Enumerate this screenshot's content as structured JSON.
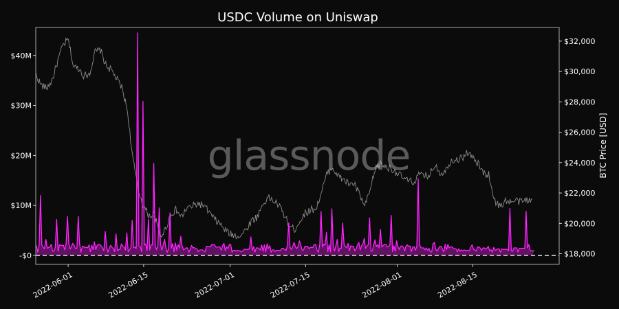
{
  "chart_data": {
    "type": "line",
    "title": "USDC Volume on Uniswap",
    "watermark": "glassnode",
    "x_ticks": [
      "2022-06-01",
      "2022-06-15",
      "2022-07-01",
      "2022-07-15",
      "2022-08-01",
      "2022-08-15"
    ],
    "x_range": [
      "2022-05-26",
      "2022-08-31"
    ],
    "left_axis": {
      "label": "",
      "ticks": [
        {
          "value": 0,
          "label": "-$0"
        },
        {
          "value": 10000000,
          "label": "$10M"
        },
        {
          "value": 20000000,
          "label": "$20M"
        },
        {
          "value": 30000000,
          "label": "$30M"
        },
        {
          "value": 40000000,
          "label": "$40M"
        }
      ],
      "range": [
        -1800000,
        45600000
      ]
    },
    "right_axis": {
      "label": "BTC Price [USD]",
      "ticks": [
        {
          "value": 18000,
          "label": "$18,000"
        },
        {
          "value": 20000,
          "label": "$20,000"
        },
        {
          "value": 22000,
          "label": "$22,000"
        },
        {
          "value": 24000,
          "label": "$24,000"
        },
        {
          "value": 26000,
          "label": "$26,000"
        },
        {
          "value": 28000,
          "label": "$28,000"
        },
        {
          "value": 30000,
          "label": "$30,000"
        },
        {
          "value": 32000,
          "label": "$32,000"
        }
      ],
      "range": [
        17300,
        32900
      ]
    },
    "baseline": {
      "value": 0,
      "style": "dashed"
    },
    "grid": false,
    "legend": "none",
    "series": [
      {
        "axis": "right",
        "color": "#8c8c8c",
        "points": [
          [
            "2022-05-26",
            29800
          ],
          [
            "2022-05-27",
            29100
          ],
          [
            "2022-05-28",
            28900
          ],
          [
            "2022-05-29",
            29400
          ],
          [
            "2022-05-30",
            30600
          ],
          [
            "2022-05-31",
            31700
          ],
          [
            "2022-06-01",
            32100
          ],
          [
            "2022-06-02",
            30300
          ],
          [
            "2022-06-03",
            30200
          ],
          [
            "2022-06-04",
            29700
          ],
          [
            "2022-06-05",
            29900
          ],
          [
            "2022-06-06",
            31300
          ],
          [
            "2022-06-07",
            31400
          ],
          [
            "2022-06-08",
            30400
          ],
          [
            "2022-06-09",
            30100
          ],
          [
            "2022-06-10",
            29500
          ],
          [
            "2022-06-11",
            28900
          ],
          [
            "2022-06-12",
            27400
          ],
          [
            "2022-06-13",
            24200
          ],
          [
            "2022-06-14",
            22200
          ],
          [
            "2022-06-15",
            21100
          ],
          [
            "2022-06-16",
            20500
          ],
          [
            "2022-06-17",
            20600
          ],
          [
            "2022-06-18",
            19100
          ],
          [
            "2022-06-19",
            19600
          ],
          [
            "2022-06-20",
            20600
          ],
          [
            "2022-06-21",
            20900
          ],
          [
            "2022-06-22",
            20400
          ],
          [
            "2022-06-23",
            21000
          ],
          [
            "2022-06-24",
            21100
          ],
          [
            "2022-06-25",
            21300
          ],
          [
            "2022-06-26",
            21200
          ],
          [
            "2022-06-27",
            20800
          ],
          [
            "2022-06-28",
            20300
          ],
          [
            "2022-06-29",
            20000
          ],
          [
            "2022-06-30",
            19600
          ],
          [
            "2022-07-01",
            19300
          ],
          [
            "2022-07-02",
            19200
          ],
          [
            "2022-07-03",
            19200
          ],
          [
            "2022-07-04",
            19600
          ],
          [
            "2022-07-05",
            20200
          ],
          [
            "2022-07-06",
            20400
          ],
          [
            "2022-07-07",
            21200
          ],
          [
            "2022-07-08",
            21700
          ],
          [
            "2022-07-09",
            21500
          ],
          [
            "2022-07-10",
            21200
          ],
          [
            "2022-07-11",
            20600
          ],
          [
            "2022-07-12",
            19800
          ],
          [
            "2022-07-13",
            19600
          ],
          [
            "2022-07-14",
            20200
          ],
          [
            "2022-07-15",
            20700
          ],
          [
            "2022-07-16",
            20900
          ],
          [
            "2022-07-17",
            21000
          ],
          [
            "2022-07-18",
            22100
          ],
          [
            "2022-07-19",
            23300
          ],
          [
            "2022-07-20",
            23700
          ],
          [
            "2022-07-21",
            23100
          ],
          [
            "2022-07-22",
            22900
          ],
          [
            "2022-07-23",
            22600
          ],
          [
            "2022-07-24",
            22600
          ],
          [
            "2022-07-25",
            21900
          ],
          [
            "2022-07-26",
            21100
          ],
          [
            "2022-07-27",
            22200
          ],
          [
            "2022-07-28",
            23700
          ],
          [
            "2022-07-29",
            23900
          ],
          [
            "2022-07-30",
            23700
          ],
          [
            "2022-07-31",
            23600
          ],
          [
            "2022-08-01",
            23300
          ],
          [
            "2022-08-02",
            23000
          ],
          [
            "2022-08-03",
            22800
          ],
          [
            "2022-08-04",
            22700
          ],
          [
            "2022-08-05",
            23200
          ],
          [
            "2022-08-06",
            23100
          ],
          [
            "2022-08-07",
            23200
          ],
          [
            "2022-08-08",
            23900
          ],
          [
            "2022-08-09",
            23300
          ],
          [
            "2022-08-10",
            23500
          ],
          [
            "2022-08-11",
            24200
          ],
          [
            "2022-08-12",
            24200
          ],
          [
            "2022-08-13",
            24300
          ],
          [
            "2022-08-14",
            24700
          ],
          [
            "2022-08-15",
            24300
          ],
          [
            "2022-08-16",
            23900
          ],
          [
            "2022-08-17",
            23300
          ],
          [
            "2022-08-18",
            23200
          ],
          [
            "2022-08-19",
            21500
          ],
          [
            "2022-08-20",
            21100
          ],
          [
            "2022-08-21",
            21500
          ],
          [
            "2022-08-22",
            21400
          ],
          [
            "2022-08-23",
            21500
          ],
          [
            "2022-08-24",
            21400
          ],
          [
            "2022-08-25",
            21600
          ],
          [
            "2022-08-26",
            21400
          ]
        ]
      },
      {
        "axis": "left",
        "color": "#ff22ff",
        "points": [
          [
            "2022-05-26",
            2400000
          ],
          [
            "2022-05-27",
            12000000
          ],
          [
            "2022-05-28",
            3200000
          ],
          [
            "2022-05-29",
            2200000
          ],
          [
            "2022-05-30",
            7200000
          ],
          [
            "2022-05-31",
            2000000
          ],
          [
            "2022-06-01",
            7800000
          ],
          [
            "2022-06-02",
            2400000
          ],
          [
            "2022-06-03",
            7800000
          ],
          [
            "2022-06-04",
            1800000
          ],
          [
            "2022-06-05",
            2100000
          ],
          [
            "2022-06-06",
            2700000
          ],
          [
            "2022-06-07",
            2200000
          ],
          [
            "2022-06-08",
            4800000
          ],
          [
            "2022-06-09",
            2000000
          ],
          [
            "2022-06-10",
            4300000
          ],
          [
            "2022-06-11",
            2300000
          ],
          [
            "2022-06-12",
            4500000
          ],
          [
            "2022-06-13",
            7000000
          ],
          [
            "2022-06-14",
            44500000
          ],
          [
            "2022-06-15",
            30800000
          ],
          [
            "2022-06-16",
            7200000
          ],
          [
            "2022-06-17",
            18400000
          ],
          [
            "2022-06-18",
            9500000
          ],
          [
            "2022-06-19",
            3200000
          ],
          [
            "2022-06-20",
            8500000
          ],
          [
            "2022-06-21",
            2500000
          ],
          [
            "2022-06-22",
            3800000
          ],
          [
            "2022-06-23",
            1500000
          ],
          [
            "2022-06-24",
            2000000
          ],
          [
            "2022-06-25",
            1300000
          ],
          [
            "2022-06-26",
            1100000
          ],
          [
            "2022-06-27",
            1800000
          ],
          [
            "2022-06-28",
            2200000
          ],
          [
            "2022-06-29",
            1700000
          ],
          [
            "2022-06-30",
            2400000
          ],
          [
            "2022-07-01",
            2200000
          ],
          [
            "2022-07-02",
            1000000
          ],
          [
            "2022-07-03",
            900000
          ],
          [
            "2022-07-04",
            1200000
          ],
          [
            "2022-07-05",
            3700000
          ],
          [
            "2022-07-06",
            1500000
          ],
          [
            "2022-07-07",
            2100000
          ],
          [
            "2022-07-08",
            2300000
          ],
          [
            "2022-07-09",
            1100000
          ],
          [
            "2022-07-10",
            1000000
          ],
          [
            "2022-07-11",
            1400000
          ],
          [
            "2022-07-12",
            6500000
          ],
          [
            "2022-07-13",
            2600000
          ],
          [
            "2022-07-14",
            2900000
          ],
          [
            "2022-07-15",
            1800000
          ],
          [
            "2022-07-16",
            1600000
          ],
          [
            "2022-07-17",
            2200000
          ],
          [
            "2022-07-18",
            8800000
          ],
          [
            "2022-07-19",
            4600000
          ],
          [
            "2022-07-20",
            9300000
          ],
          [
            "2022-07-21",
            3200000
          ],
          [
            "2022-07-22",
            6500000
          ],
          [
            "2022-07-23",
            2400000
          ],
          [
            "2022-07-24",
            1800000
          ],
          [
            "2022-07-25",
            2600000
          ],
          [
            "2022-07-26",
            3400000
          ],
          [
            "2022-07-27",
            7500000
          ],
          [
            "2022-07-28",
            3100000
          ],
          [
            "2022-07-29",
            5200000
          ],
          [
            "2022-07-30",
            2200000
          ],
          [
            "2022-07-31",
            8000000
          ],
          [
            "2022-08-01",
            2900000
          ],
          [
            "2022-08-02",
            1900000
          ],
          [
            "2022-08-03",
            2100000
          ],
          [
            "2022-08-04",
            1700000
          ],
          [
            "2022-08-05",
            15300000
          ],
          [
            "2022-08-06",
            1500000
          ],
          [
            "2022-08-07",
            1400000
          ],
          [
            "2022-08-08",
            2600000
          ],
          [
            "2022-08-09",
            1800000
          ],
          [
            "2022-08-10",
            2200000
          ],
          [
            "2022-08-11",
            1700000
          ],
          [
            "2022-08-12",
            1300000
          ],
          [
            "2022-08-13",
            1100000
          ],
          [
            "2022-08-14",
            1000000
          ],
          [
            "2022-08-15",
            2100000
          ],
          [
            "2022-08-16",
            1700000
          ],
          [
            "2022-08-17",
            1500000
          ],
          [
            "2022-08-18",
            1800000
          ],
          [
            "2022-08-19",
            1600000
          ],
          [
            "2022-08-20",
            1300000
          ],
          [
            "2022-08-21",
            1200000
          ],
          [
            "2022-08-22",
            9400000
          ],
          [
            "2022-08-23",
            1500000
          ],
          [
            "2022-08-24",
            1400000
          ],
          [
            "2022-08-25",
            8800000
          ],
          [
            "2022-08-26",
            900000
          ]
        ]
      }
    ]
  }
}
